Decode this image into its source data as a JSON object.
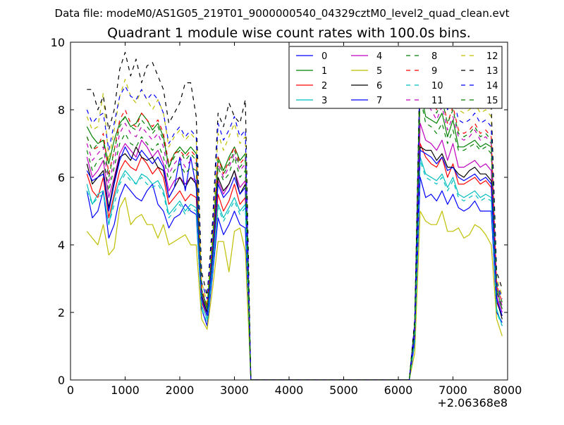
{
  "header": {
    "data_file_label": "Data file: modeM0/AS1G05_219T01_9000000540_04329cztM0_level2_quad_clean.evt"
  },
  "chart_data": {
    "type": "line",
    "title": "Quadrant 1 module wise count rates with 100.0s bins.",
    "xlabel": "",
    "ylabel": "",
    "x_offset_label": "+2.06368e8",
    "xlim": [
      0,
      8000
    ],
    "ylim": [
      0,
      10
    ],
    "x_ticks": [
      0,
      1000,
      2000,
      3000,
      4000,
      5000,
      6000,
      7000,
      8000
    ],
    "y_ticks": [
      0,
      2,
      4,
      6,
      8,
      10
    ],
    "grid": false,
    "legend_position": "top-right",
    "legend_columns": 4,
    "x": [
      300,
      400,
      500,
      600,
      700,
      800,
      900,
      1000,
      1100,
      1200,
      1300,
      1400,
      1500,
      1600,
      1700,
      1800,
      1900,
      2000,
      2100,
      2200,
      2300,
      2400,
      2500,
      2600,
      2700,
      2800,
      2900,
      3000,
      3100,
      3200,
      3300,
      6200,
      6300,
      6400,
      6500,
      6600,
      6700,
      6800,
      6900,
      7000,
      7100,
      7200,
      7300,
      7400,
      7500,
      7600,
      7700,
      7800,
      7900
    ],
    "series": [
      {
        "name": "0",
        "color": "#0000ff",
        "dash": "solid",
        "values": [
          5.6,
          4.8,
          5.0,
          5.6,
          4.2,
          4.6,
          5.4,
          5.8,
          5.6,
          5.4,
          5.3,
          5.6,
          5.8,
          5.2,
          5.0,
          4.5,
          4.8,
          4.9,
          5.2,
          5.0,
          4.9,
          2.1,
          1.6,
          3.1,
          4.8,
          4.3,
          4.6,
          5.0,
          4.6,
          4.5,
          0.0,
          0.0,
          1.1,
          6.0,
          5.4,
          5.5,
          5.3,
          5.6,
          5.2,
          5.5,
          5.1,
          5.0,
          5.1,
          5.3,
          5.0,
          5.0,
          5.0,
          2.0,
          1.7
        ]
      },
      {
        "name": "1",
        "color": "#008000",
        "dash": "solid",
        "values": [
          7.5,
          7.2,
          7.0,
          7.1,
          6.4,
          7.1,
          7.6,
          7.8,
          7.5,
          7.6,
          7.9,
          7.7,
          7.4,
          7.6,
          7.2,
          6.3,
          6.7,
          6.9,
          6.7,
          6.9,
          6.7,
          2.6,
          2.2,
          4.0,
          6.6,
          6.2,
          6.6,
          6.9,
          6.5,
          6.7,
          0.0,
          0.0,
          1.6,
          8.6,
          7.8,
          7.7,
          7.6,
          7.9,
          7.2,
          7.7,
          6.9,
          6.9,
          7.0,
          7.1,
          6.9,
          7.0,
          6.9,
          2.7,
          2.1
        ]
      },
      {
        "name": "2",
        "color": "#ff0000",
        "dash": "solid",
        "values": [
          6.1,
          5.6,
          5.4,
          6.0,
          4.8,
          5.5,
          6.2,
          6.5,
          6.3,
          6.2,
          6.6,
          6.4,
          6.1,
          6.3,
          6.0,
          5.2,
          5.4,
          5.6,
          5.3,
          5.5,
          5.4,
          2.3,
          1.9,
          3.5,
          5.5,
          5.0,
          5.3,
          5.8,
          5.2,
          5.4,
          0.0,
          0.0,
          1.3,
          7.0,
          6.6,
          6.4,
          6.3,
          6.6,
          6.0,
          6.4,
          5.8,
          5.8,
          5.9,
          6.0,
          5.8,
          5.9,
          5.7,
          2.3,
          1.9
        ]
      },
      {
        "name": "3",
        "color": "#00bfbf",
        "dash": "solid",
        "values": [
          5.8,
          5.2,
          5.5,
          5.6,
          4.6,
          5.4,
          5.9,
          6.2,
          6.0,
          5.8,
          6.1,
          6.0,
          5.8,
          5.9,
          5.6,
          4.9,
          5.1,
          5.3,
          5.0,
          5.2,
          5.1,
          2.2,
          1.8,
          3.3,
          5.2,
          4.8,
          5.1,
          5.4,
          5.0,
          5.2,
          0.0,
          0.0,
          1.2,
          6.6,
          6.1,
          6.0,
          5.9,
          6.1,
          5.7,
          6.0,
          5.5,
          5.4,
          5.5,
          5.6,
          5.4,
          5.5,
          5.4,
          2.1,
          1.6
        ]
      },
      {
        "name": "4",
        "color": "#bf00bf",
        "dash": "solid",
        "values": [
          6.6,
          6.0,
          6.2,
          6.5,
          5.4,
          6.0,
          6.7,
          7.0,
          6.8,
          6.6,
          7.1,
          6.9,
          6.6,
          6.8,
          6.4,
          5.6,
          5.9,
          6.0,
          5.8,
          6.0,
          5.9,
          2.4,
          2.0,
          3.7,
          5.9,
          5.5,
          5.8,
          6.2,
          5.7,
          5.9,
          0.0,
          0.0,
          1.4,
          7.6,
          7.1,
          7.0,
          6.8,
          7.1,
          6.5,
          7.0,
          6.3,
          6.3,
          6.4,
          6.5,
          6.3,
          6.4,
          6.2,
          2.5,
          2.0
        ]
      },
      {
        "name": "5",
        "color": "#bfbf00",
        "dash": "solid",
        "values": [
          4.4,
          4.2,
          4.0,
          4.6,
          3.7,
          3.9,
          5.1,
          5.4,
          4.6,
          4.8,
          4.9,
          4.6,
          4.6,
          4.2,
          4.6,
          4.0,
          4.1,
          4.2,
          4.3,
          4.0,
          4.0,
          1.8,
          1.5,
          2.7,
          4.1,
          4.1,
          3.2,
          4.4,
          4.5,
          3.8,
          0.0,
          0.0,
          0.8,
          5.0,
          4.7,
          4.6,
          4.6,
          5.0,
          4.4,
          4.4,
          4.5,
          4.2,
          4.3,
          4.6,
          4.5,
          4.3,
          4.0,
          1.8,
          1.3
        ]
      },
      {
        "name": "6",
        "color": "#000000",
        "dash": "solid",
        "values": [
          6.4,
          5.8,
          6.0,
          6.2,
          5.1,
          5.9,
          6.6,
          6.7,
          6.5,
          6.9,
          6.6,
          6.5,
          6.6,
          6.3,
          6.2,
          5.4,
          5.7,
          6.0,
          5.7,
          6.0,
          5.8,
          2.5,
          2.0,
          3.6,
          6.0,
          5.6,
          5.8,
          6.2,
          5.5,
          5.8,
          0.0,
          0.0,
          1.4,
          6.9,
          6.8,
          6.8,
          6.5,
          6.7,
          6.3,
          6.3,
          6.1,
          6.0,
          6.2,
          6.3,
          6.1,
          6.1,
          5.9,
          2.4,
          1.8
        ]
      },
      {
        "name": "7",
        "color": "#0000ff",
        "dash": "solid",
        "values": [
          6.2,
          5.9,
          6.0,
          6.1,
          5.0,
          5.8,
          6.5,
          6.9,
          6.6,
          6.5,
          6.8,
          6.6,
          6.4,
          6.6,
          6.3,
          5.4,
          5.7,
          6.6,
          5.6,
          6.6,
          5.7,
          2.4,
          1.9,
          3.6,
          5.8,
          5.4,
          5.6,
          6.0,
          5.5,
          5.7,
          0.0,
          0.0,
          1.3,
          6.8,
          6.7,
          6.6,
          6.4,
          6.6,
          6.2,
          6.3,
          6.0,
          5.9,
          6.0,
          6.1,
          5.9,
          6.0,
          5.8,
          2.4,
          1.9
        ]
      },
      {
        "name": "8",
        "color": "#008000",
        "dash": "dashed",
        "values": [
          6.8,
          6.2,
          6.5,
          6.6,
          5.6,
          6.3,
          7.0,
          7.3,
          7.0,
          6.9,
          7.2,
          7.0,
          6.8,
          7.0,
          6.6,
          5.9,
          6.2,
          6.4,
          6.1,
          6.3,
          6.2,
          2.6,
          2.1,
          3.9,
          6.3,
          5.9,
          6.1,
          6.6,
          6.0,
          6.2,
          0.0,
          0.0,
          1.5,
          8.4,
          7.6,
          7.5,
          7.3,
          7.6,
          7.0,
          7.4,
          6.8,
          6.8,
          6.9,
          7.0,
          6.8,
          6.9,
          6.7,
          2.6,
          2.1
        ]
      },
      {
        "name": "9",
        "color": "#ff0000",
        "dash": "dashed",
        "values": [
          7.2,
          6.8,
          6.9,
          7.3,
          6.1,
          6.8,
          7.7,
          8.0,
          7.6,
          7.5,
          7.9,
          7.7,
          7.5,
          7.7,
          7.3,
          6.4,
          6.7,
          6.8,
          6.6,
          6.8,
          6.6,
          2.7,
          2.2,
          4.1,
          6.6,
          6.1,
          6.5,
          6.9,
          6.4,
          6.6,
          0.0,
          0.0,
          1.6,
          9.5,
          8.6,
          8.3,
          8.0,
          8.4,
          7.6,
          8.1,
          7.4,
          7.3,
          7.4,
          7.6,
          7.3,
          7.4,
          7.2,
          2.8,
          2.3
        ]
      },
      {
        "name": "10",
        "color": "#00bfbf",
        "dash": "dashed",
        "values": [
          5.6,
          5.2,
          5.4,
          5.5,
          4.6,
          5.2,
          5.8,
          6.1,
          5.9,
          5.8,
          6.0,
          5.8,
          5.7,
          5.8,
          5.5,
          4.8,
          5.0,
          5.2,
          4.9,
          5.1,
          5.0,
          2.1,
          1.7,
          3.2,
          5.1,
          4.7,
          5.0,
          5.3,
          4.9,
          5.1,
          0.0,
          0.0,
          1.1,
          6.5,
          6.0,
          5.9,
          5.8,
          6.0,
          5.6,
          5.9,
          5.4,
          5.3,
          5.4,
          5.5,
          5.3,
          5.4,
          5.3,
          2.0,
          1.6
        ]
      },
      {
        "name": "11",
        "color": "#bf00bf",
        "dash": "dashed",
        "values": [
          7.0,
          6.5,
          6.7,
          6.9,
          5.8,
          6.5,
          7.3,
          7.6,
          7.3,
          7.2,
          7.5,
          7.3,
          7.1,
          7.3,
          6.9,
          6.1,
          6.4,
          6.6,
          6.3,
          6.5,
          6.4,
          2.6,
          2.1,
          3.9,
          6.4,
          6.0,
          6.3,
          6.7,
          6.2,
          6.4,
          0.0,
          0.0,
          1.5,
          9.0,
          8.2,
          8.0,
          7.7,
          8.1,
          7.4,
          7.8,
          7.2,
          7.1,
          7.2,
          7.4,
          7.1,
          7.2,
          7.0,
          2.7,
          2.2
        ]
      },
      {
        "name": "12",
        "color": "#bfbf00",
        "dash": "dashed",
        "values": [
          7.8,
          7.4,
          7.5,
          8.5,
          6.5,
          7.4,
          8.4,
          8.9,
          8.4,
          8.2,
          8.6,
          8.3,
          8.0,
          8.3,
          7.9,
          6.9,
          7.2,
          7.4,
          7.1,
          7.3,
          7.1,
          2.9,
          2.3,
          4.3,
          7.3,
          6.8,
          7.2,
          7.6,
          7.0,
          7.2,
          0.0,
          0.0,
          1.7,
          9.6,
          9.2,
          9.0,
          8.6,
          9.0,
          8.2,
          8.7,
          8.0,
          7.9,
          8.0,
          8.2,
          7.9,
          8.0,
          7.8,
          3.0,
          2.5
        ]
      },
      {
        "name": "13",
        "color": "#000000",
        "dash": "dashed",
        "values": [
          8.6,
          8.6,
          8.0,
          8.4,
          7.4,
          8.0,
          9.2,
          9.7,
          9.0,
          9.5,
          8.8,
          9.3,
          9.4,
          9.0,
          8.6,
          7.6,
          7.9,
          8.2,
          8.8,
          8.8,
          7.8,
          3.2,
          2.5,
          4.7,
          7.9,
          7.5,
          8.2,
          7.8,
          7.6,
          8.3,
          0.0,
          0.0,
          1.8,
          9.7,
          9.4,
          9.3,
          9.0,
          9.4,
          8.6,
          9.0,
          8.4,
          8.3,
          8.4,
          8.6,
          8.2,
          8.3,
          8.1,
          3.2,
          2.7
        ]
      },
      {
        "name": "14",
        "color": "#0000ff",
        "dash": "dashed",
        "values": [
          8.0,
          7.6,
          7.8,
          7.9,
          6.8,
          7.6,
          8.4,
          8.7,
          8.4,
          8.3,
          8.6,
          8.3,
          8.5,
          8.3,
          7.9,
          7.0,
          7.3,
          7.5,
          7.2,
          7.4,
          7.2,
          2.9,
          2.4,
          4.4,
          7.6,
          7.1,
          7.4,
          7.8,
          7.2,
          7.4,
          0.0,
          0.0,
          1.7,
          9.4,
          8.8,
          8.6,
          8.3,
          8.7,
          8.0,
          8.4,
          7.7,
          7.6,
          7.7,
          7.9,
          7.6,
          7.7,
          7.5,
          2.9,
          2.4
        ]
      },
      {
        "name": "15",
        "color": "#008000",
        "dash": "dashed",
        "values": [
          7.2,
          6.8,
          7.0,
          7.1,
          6.0,
          6.8,
          7.5,
          7.8,
          7.5,
          7.4,
          7.7,
          7.5,
          7.3,
          7.5,
          7.1,
          6.3,
          6.6,
          6.8,
          6.5,
          6.7,
          6.5,
          2.7,
          2.1,
          4.0,
          6.5,
          6.1,
          6.4,
          6.8,
          6.3,
          6.5,
          0.0,
          0.0,
          1.6,
          9.3,
          8.4,
          8.2,
          7.9,
          8.3,
          7.6,
          8.0,
          7.3,
          7.2,
          7.3,
          7.5,
          7.2,
          7.3,
          7.1,
          2.8,
          2.3
        ]
      }
    ]
  }
}
